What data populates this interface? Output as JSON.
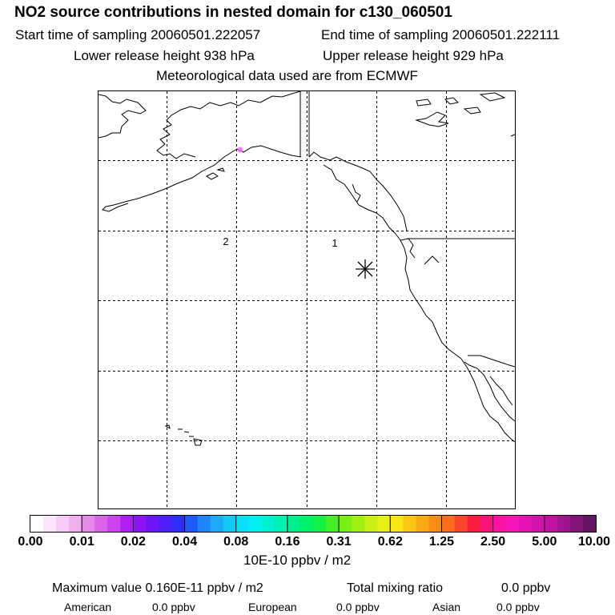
{
  "header": {
    "title": "NO2 source contributions in nested domain for c130_060501",
    "start_label": "Start time of sampling 20060501.222057",
    "end_label": "End time of sampling 20060501.222111",
    "lower_label": "Lower release height  938 hPa",
    "upper_label": "Upper release height  929 hPa",
    "met_label": "Meteorological data used are from ECMWF"
  },
  "map": {
    "region_labels": [
      "1",
      "2"
    ],
    "source_marker": "asterisk",
    "hotspot_color": "#ff66ff"
  },
  "colorbar": {
    "ticks": [
      "0.00",
      "0.01",
      "0.02",
      "0.04",
      "0.08",
      "0.16",
      "0.31",
      "0.62",
      "1.25",
      "2.50",
      "5.00",
      "10.00"
    ],
    "units": "10E-10 ppbv / m2",
    "colors": [
      "#ffffff",
      "#fbe6fb",
      "#f6ccf6",
      "#efb0f0",
      "#e58ae9",
      "#d966e8",
      "#cc44ee",
      "#b21ef0",
      "#8f14f2",
      "#6f14f2",
      "#4e1ef6",
      "#2e2ef8",
      "#1e5af8",
      "#1e86f8",
      "#1eaaf8",
      "#14c8f8",
      "#0ae0f8",
      "#00f0f0",
      "#00f0d2",
      "#00f0b0",
      "#00f090",
      "#00f068",
      "#14f046",
      "#46f028",
      "#78f014",
      "#a0f014",
      "#c8f014",
      "#e6f014",
      "#fae614",
      "#fac814",
      "#faaa14",
      "#fa8c14",
      "#fa6e1e",
      "#fa4628",
      "#fa1e3c",
      "#fa1478",
      "#fa14a0",
      "#f514b4",
      "#e614b4",
      "#d214aa",
      "#be14a0",
      "#a01490",
      "#821478",
      "#641464"
    ]
  },
  "footer": {
    "max_label": "Maximum value  0.160E-11 ppbv / m2",
    "total_label": "Total mixing ratio",
    "total_value": "0.0 ppbv",
    "american_label": "American",
    "american_value": "0.0 ppbv",
    "european_label": "European",
    "european_value": "0.0 ppbv",
    "asian_label": "Asian",
    "asian_value": "0.0 ppbv"
  }
}
